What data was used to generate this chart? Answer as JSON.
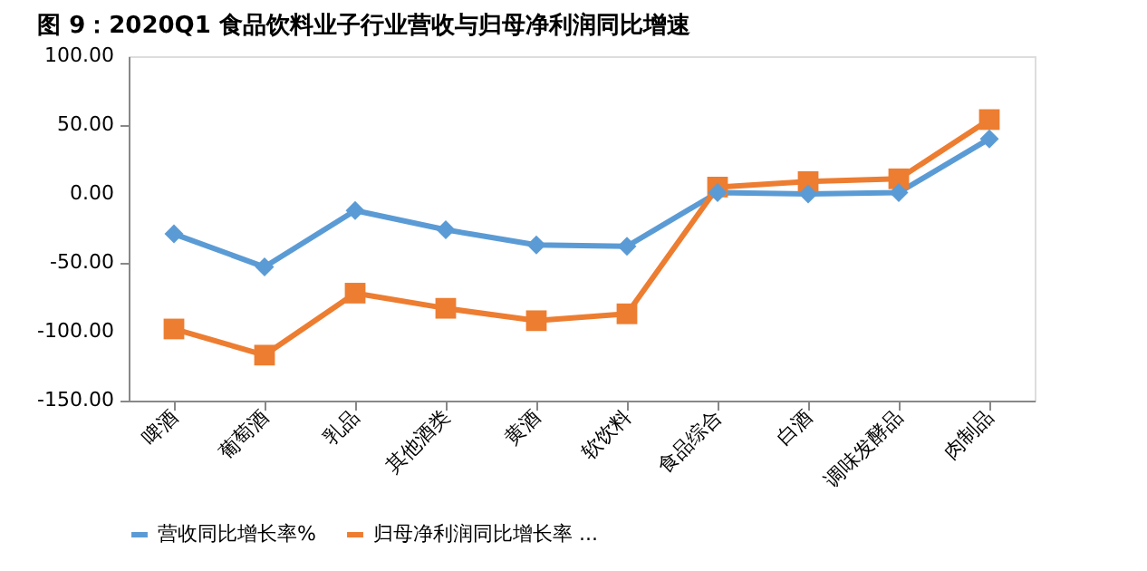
{
  "chart_data": {
    "type": "line",
    "title": "图 9：2020Q1 食品饮料业子行业营收与归母净利润同比增速",
    "categories": [
      "啤酒",
      "葡萄酒",
      "乳品",
      "其他酒类",
      "黄酒",
      "软饮料",
      "食品综合",
      "白酒",
      "调味发酵品",
      "肉制品"
    ],
    "series": [
      {
        "name": "营收同比增长率%",
        "color": "#5b9bd5",
        "marker": "diamond",
        "values": [
          -29,
          -53,
          -12,
          -26,
          -37,
          -38,
          1,
          0,
          1,
          40
        ]
      },
      {
        "name": "归母净利润同比增长率 ...",
        "color": "#ed7d31",
        "marker": "square",
        "values": [
          -98,
          -117,
          -72,
          -83,
          -92,
          -87,
          5,
          9,
          11,
          54
        ]
      }
    ],
    "ylim": [
      -150,
      100
    ],
    "yticks": [
      {
        "value": -150,
        "label": "-150.00"
      },
      {
        "value": -100,
        "label": "-100.00"
      },
      {
        "value": -50,
        "label": "-50.00"
      },
      {
        "value": 0,
        "label": "0.00"
      },
      {
        "value": 50,
        "label": "50.00"
      },
      {
        "value": 100,
        "label": "100.00"
      }
    ],
    "grid": false,
    "legend": "bottom",
    "line_style": "solid"
  }
}
